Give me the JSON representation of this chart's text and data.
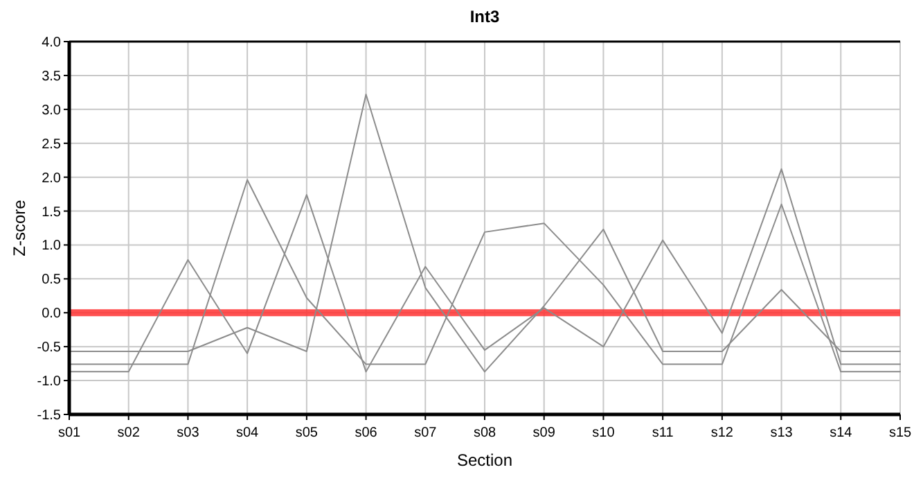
{
  "chart_data": {
    "type": "line",
    "title": "Int3",
    "xlabel": "Section",
    "ylabel": "Z-score",
    "categories": [
      "s01",
      "s02",
      "s03",
      "s04",
      "s05",
      "s06",
      "s07",
      "s08",
      "s09",
      "s10",
      "s11",
      "s12",
      "s13",
      "s14",
      "s15"
    ],
    "series": [
      {
        "color": "#8c8c8c",
        "values": [
          -0.57,
          -0.57,
          -0.57,
          -0.22,
          -0.57,
          3.22,
          0.37,
          -0.87,
          0.1,
          1.23,
          -0.57,
          -0.57,
          0.34,
          -0.57,
          -0.57
        ]
      },
      {
        "color": "#8c8c8c",
        "values": [
          -0.87,
          -0.87,
          0.78,
          -0.6,
          1.74,
          -0.87,
          0.68,
          -0.55,
          0.07,
          -0.5,
          1.07,
          -0.3,
          2.12,
          -0.76,
          -0.76
        ]
      },
      {
        "color": "#8c8c8c",
        "values": [
          -0.76,
          -0.76,
          -0.76,
          1.96,
          0.22,
          -0.76,
          -0.76,
          1.19,
          1.32,
          0.41,
          -0.76,
          -0.76,
          1.6,
          -0.87,
          -0.87
        ]
      }
    ],
    "ylim": [
      -1.5,
      4.0
    ],
    "yticks": [
      {
        "value": -1.5,
        "label": "-1.5"
      },
      {
        "value": -1,
        "label": "-1.0"
      },
      {
        "value": -0.5,
        "label": "-0.5"
      },
      {
        "value": 0,
        "label": "0.0"
      },
      {
        "value": 0.5,
        "label": "0.5"
      },
      {
        "value": 1,
        "label": "1.0"
      },
      {
        "value": 1.5,
        "label": "1.5"
      },
      {
        "value": 2,
        "label": "2.0"
      },
      {
        "value": 2.5,
        "label": "2.5"
      },
      {
        "value": 3,
        "label": "3.0"
      },
      {
        "value": 3.5,
        "label": "3.5"
      },
      {
        "value": 4,
        "label": "4.0"
      }
    ],
    "ref_lines": [
      {
        "axis": "y",
        "value": 0,
        "color": "#ff3333"
      }
    ],
    "grid": true,
    "marker": "none",
    "line_style": "solid"
  }
}
